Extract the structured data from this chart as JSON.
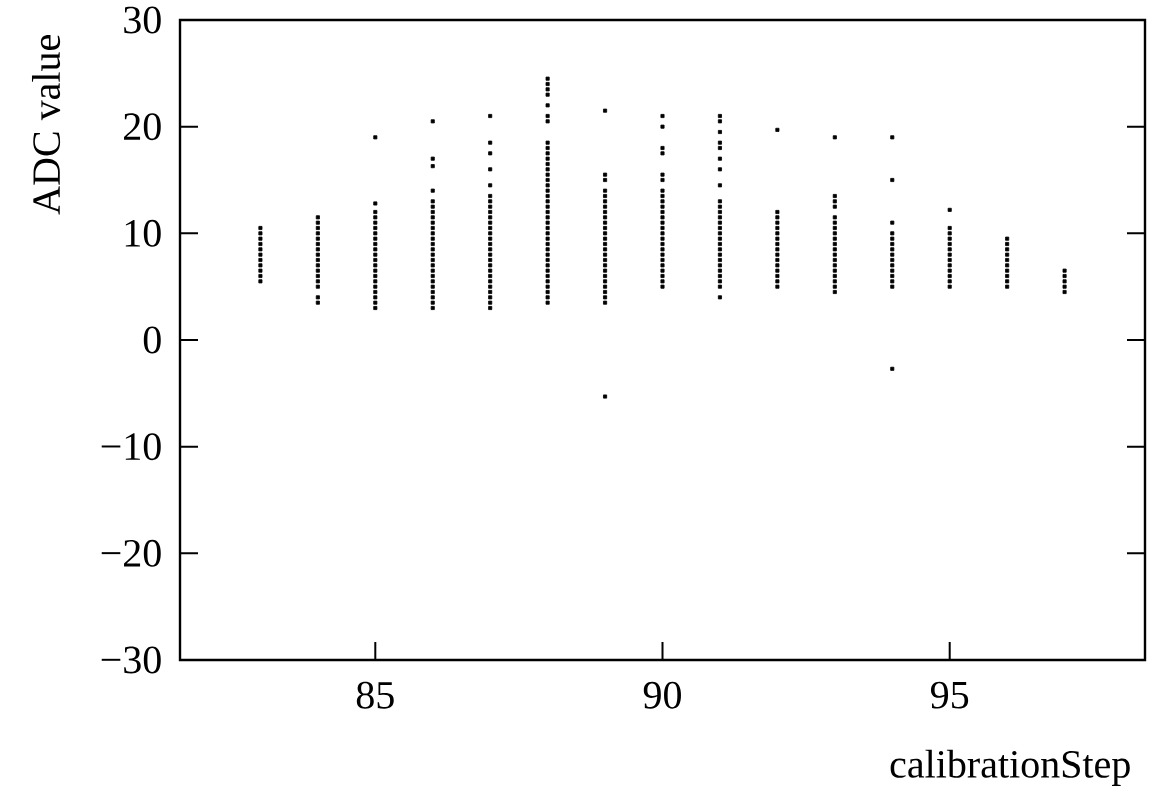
{
  "chart_data": {
    "type": "scatter",
    "xlabel": "calibrationStep",
    "ylabel": "ADC value",
    "marker": "square",
    "color": "#000000",
    "xlim": [
      81.6,
      98.4
    ],
    "xticks": [
      85,
      90,
      95
    ],
    "ylim": [
      -30,
      30
    ],
    "yticks": [
      {
        "value": -30,
        "label": "−30"
      },
      {
        "value": -20,
        "label": "−20"
      },
      {
        "value": -10,
        "label": "−10"
      },
      0,
      10,
      20,
      30
    ],
    "series": [
      {
        "x": [
          83,
          83,
          83,
          83,
          83,
          83,
          83,
          83,
          83,
          83,
          83,
          84,
          84,
          84,
          84,
          84,
          84,
          84,
          84,
          84,
          84,
          84,
          84,
          84,
          84,
          84,
          84,
          85,
          85,
          85,
          85,
          85,
          85,
          85,
          85,
          85,
          85,
          85,
          85,
          85,
          85,
          85,
          85,
          85,
          85,
          85,
          85,
          85,
          86,
          86,
          86,
          86,
          86,
          86,
          86,
          86,
          86,
          86,
          86,
          86,
          86,
          86,
          86,
          86,
          86,
          86,
          86,
          86,
          86,
          86,
          86,
          86,
          86,
          87,
          87,
          87,
          87,
          87,
          87,
          87,
          87,
          87,
          87,
          87,
          87,
          87,
          87,
          87,
          87,
          87,
          87,
          87,
          87,
          87,
          87,
          87,
          87,
          87,
          87,
          87,
          88,
          88,
          88,
          88,
          88,
          88,
          88,
          88,
          88,
          88,
          88,
          88,
          88,
          88,
          88,
          88,
          88,
          88,
          88,
          88,
          88,
          88,
          88,
          88,
          88,
          88,
          88,
          88,
          88,
          88,
          88,
          88,
          88,
          88,
          88,
          88,
          88,
          88,
          89,
          89,
          89,
          89,
          89,
          89,
          89,
          89,
          89,
          89,
          89,
          89,
          89,
          89,
          89,
          89,
          89,
          89,
          89,
          89,
          89,
          89,
          89,
          89,
          89,
          89,
          90,
          90,
          90,
          90,
          90,
          90,
          90,
          90,
          90,
          90,
          90,
          90,
          90,
          90,
          90,
          90,
          90,
          90,
          90,
          90,
          90,
          90,
          90,
          90,
          90,
          91,
          91,
          91,
          91,
          91,
          91,
          91,
          91,
          91,
          91,
          91,
          91,
          91,
          91,
          91,
          91,
          91,
          91,
          91,
          91,
          91,
          91,
          91,
          91,
          91,
          91,
          92,
          92,
          92,
          92,
          92,
          92,
          92,
          92,
          92,
          92,
          92,
          92,
          92,
          92,
          92,
          92,
          93,
          93,
          93,
          93,
          93,
          93,
          93,
          93,
          93,
          93,
          93,
          93,
          93,
          93,
          93,
          93,
          93,
          93,
          93,
          94,
          94,
          94,
          94,
          94,
          94,
          94,
          94,
          94,
          94,
          94,
          94,
          94,
          94,
          94,
          95,
          95,
          95,
          95,
          95,
          95,
          95,
          95,
          95,
          95,
          95,
          95,
          95,
          96,
          96,
          96,
          96,
          96,
          96,
          96,
          96,
          96,
          96,
          97,
          97,
          97,
          97,
          97
        ],
        "values": [
          5.5,
          6,
          6.5,
          7,
          7.5,
          8,
          8.5,
          9,
          9.5,
          10,
          10.5,
          3.5,
          4,
          5,
          5.5,
          6,
          6.5,
          7,
          7.5,
          8,
          8.5,
          9,
          9.5,
          10,
          10.5,
          11,
          11.5,
          3,
          3.5,
          4,
          4.5,
          5,
          5.5,
          6,
          6.5,
          7,
          7.5,
          8,
          8.5,
          9,
          9.5,
          10,
          10.5,
          11,
          11.5,
          12,
          12.8,
          19,
          3,
          3.5,
          4,
          4.5,
          5,
          5.5,
          6,
          6.5,
          7,
          7.5,
          8,
          8.5,
          9,
          9.5,
          10,
          10.5,
          11,
          11.5,
          12,
          12.5,
          13,
          14,
          16.3,
          17,
          20.5,
          3,
          3.5,
          4,
          4.5,
          5,
          5.5,
          6,
          6.5,
          7,
          7.5,
          8,
          8.5,
          9,
          9.5,
          10,
          10.5,
          11,
          11.5,
          12,
          12.5,
          13,
          13.5,
          14.5,
          16,
          17.5,
          18.5,
          21,
          3.5,
          4,
          4.5,
          5,
          5.5,
          6,
          6.5,
          7,
          7.5,
          8,
          8.5,
          9,
          9.5,
          10,
          10.5,
          11,
          11.5,
          12,
          12.5,
          13,
          13.5,
          14,
          14.5,
          15,
          15.5,
          16,
          16.5,
          17,
          17.5,
          18,
          18.5,
          20.5,
          21,
          22,
          23,
          23.5,
          24,
          24.5,
          3.5,
          4,
          4.5,
          5,
          5.5,
          6,
          6.5,
          7,
          7.5,
          8,
          8.5,
          9,
          9.5,
          10,
          10.5,
          11,
          11.5,
          12,
          12.5,
          13,
          13.5,
          14,
          15,
          15.5,
          21.5,
          -5.3,
          5,
          5.5,
          6,
          6.5,
          7,
          7.5,
          8,
          8.5,
          9,
          9.5,
          10,
          10.5,
          11,
          11.5,
          12,
          12.5,
          13,
          13.5,
          14,
          15,
          15.5,
          17.5,
          18,
          20,
          21,
          4,
          5,
          5.5,
          6,
          6.5,
          7,
          7.5,
          8,
          8.5,
          9,
          9.5,
          10,
          10.5,
          11,
          11.5,
          12,
          12.5,
          13,
          14.5,
          16,
          17,
          18,
          18.5,
          19.5,
          20.5,
          21,
          5,
          5.5,
          6,
          6.5,
          7,
          7.5,
          8,
          8.5,
          9,
          9.5,
          10,
          10.5,
          11,
          11.5,
          12,
          19.7,
          4.5,
          5,
          5.5,
          6,
          6.5,
          7,
          7.5,
          8,
          8.5,
          9,
          9.5,
          10,
          10.5,
          11,
          11.5,
          12.5,
          13,
          13.5,
          19,
          5,
          5.5,
          6,
          6.5,
          7,
          7.5,
          8,
          8.5,
          9,
          9.5,
          10,
          11,
          15,
          19,
          -2.7,
          5,
          5.5,
          6,
          6.5,
          7,
          7.5,
          8,
          8.5,
          9,
          9.5,
          10,
          10.5,
          12.2,
          5,
          5.5,
          6,
          6.5,
          7,
          7.5,
          8,
          8.5,
          9,
          9.5,
          4.5,
          5,
          5.5,
          6,
          6.5
        ]
      }
    ]
  }
}
